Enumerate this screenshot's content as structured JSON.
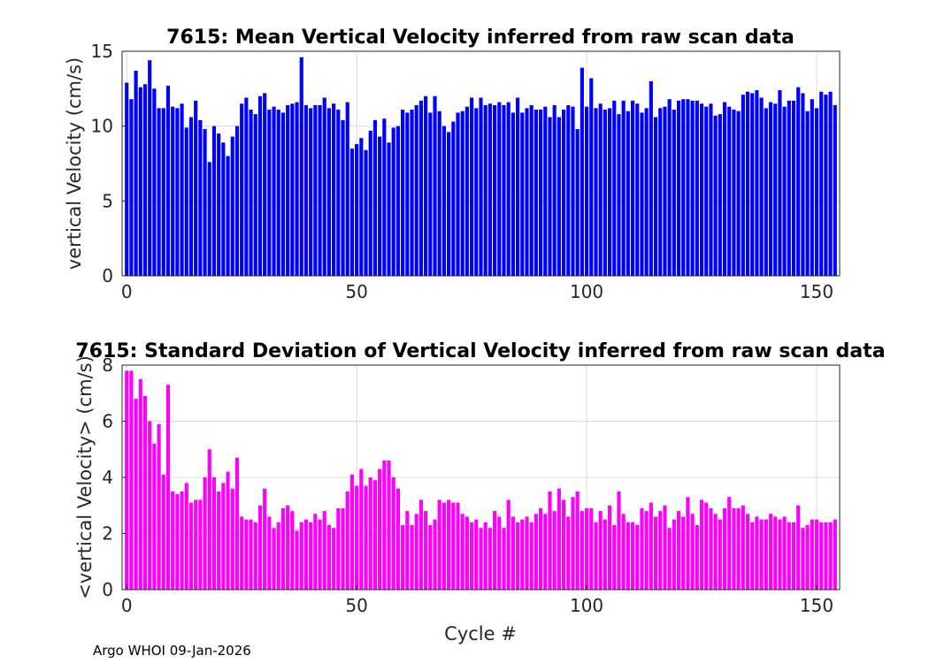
{
  "chart_data": [
    {
      "type": "bar",
      "title": "7615: Mean Vertical Velocity inferred from raw scan data",
      "xlabel": "",
      "ylabel": "vertical Velocity (cm/s)",
      "color": "#0000ff",
      "xlim": [
        -1,
        155
      ],
      "ylim": [
        0,
        15
      ],
      "xticks": [
        0,
        50,
        100,
        150
      ],
      "yticks": [
        0,
        5,
        10,
        15
      ],
      "grid": true,
      "x_start": 0,
      "values": [
        12.9,
        11.8,
        13.7,
        12.6,
        12.8,
        14.4,
        12.5,
        11.2,
        11.2,
        12.7,
        11.3,
        11.2,
        11.5,
        9.9,
        10.6,
        11.7,
        10.4,
        9.8,
        7.6,
        10.0,
        9.5,
        8.9,
        8.0,
        9.3,
        10.0,
        11.5,
        11.9,
        11.1,
        10.8,
        12.0,
        12.2,
        11.1,
        11.3,
        11.1,
        10.9,
        11.4,
        11.5,
        11.6,
        14.6,
        11.4,
        11.2,
        11.4,
        11.4,
        11.9,
        11.2,
        11.5,
        11.1,
        10.4,
        11.6,
        8.5,
        8.8,
        9.2,
        8.4,
        9.7,
        10.4,
        9.3,
        10.5,
        8.9,
        9.9,
        10.0,
        11.1,
        10.9,
        11.1,
        11.4,
        11.7,
        12.0,
        10.9,
        12.0,
        11.0,
        10.0,
        9.6,
        10.3,
        10.9,
        11.0,
        11.3,
        11.9,
        11.2,
        11.9,
        11.4,
        11.5,
        11.4,
        11.6,
        11.4,
        11.6,
        10.9,
        11.9,
        10.9,
        11.2,
        11.4,
        11.1,
        11.1,
        11.3,
        10.6,
        11.4,
        10.6,
        11.1,
        11.4,
        11.3,
        9.8,
        13.9,
        11.3,
        13.2,
        11.2,
        11.5,
        11.1,
        11.2,
        11.7,
        10.8,
        11.7,
        11.0,
        11.7,
        11.5,
        10.9,
        11.2,
        13.0,
        10.6,
        11.2,
        11.3,
        11.8,
        11.1,
        11.7,
        11.8,
        11.8,
        11.7,
        11.7,
        11.5,
        11.3,
        11.5,
        10.7,
        10.8,
        11.6,
        11.3,
        11.1,
        11.0,
        12.1,
        12.3,
        12.2,
        12.4,
        11.9,
        11.2,
        11.6,
        11.5,
        12.4,
        11.3,
        11.7,
        11.7,
        12.6,
        12.2,
        11.0,
        11.8,
        11.2,
        12.3,
        12.1,
        12.3,
        11.4
      ]
    },
    {
      "type": "bar",
      "title": "7615: Standard Deviation of Vertical Velocity inferred from raw scan data",
      "xlabel": "Cycle #",
      "ylabel": "<vertical Velocity> (cm/s)",
      "color": "#ff00ff",
      "xlim": [
        -1,
        155
      ],
      "ylim": [
        0,
        8
      ],
      "xticks": [
        0,
        50,
        100,
        150
      ],
      "yticks": [
        0,
        2,
        4,
        6,
        8
      ],
      "grid": true,
      "x_start": 0,
      "values": [
        7.8,
        7.8,
        6.8,
        7.5,
        6.9,
        6.0,
        5.2,
        5.9,
        4.1,
        7.3,
        3.5,
        3.4,
        3.5,
        3.8,
        3.1,
        3.2,
        3.2,
        4.0,
        5.0,
        4.0,
        3.5,
        3.8,
        4.2,
        3.6,
        4.7,
        2.6,
        2.5,
        2.5,
        2.4,
        3.0,
        3.6,
        2.6,
        2.2,
        2.4,
        2.9,
        3.0,
        2.8,
        2.1,
        2.4,
        2.5,
        2.4,
        2.7,
        2.5,
        2.8,
        2.3,
        2.2,
        2.9,
        2.9,
        3.5,
        4.1,
        3.7,
        4.3,
        3.7,
        4.0,
        3.9,
        4.3,
        4.6,
        4.6,
        4.0,
        3.6,
        2.3,
        2.8,
        2.3,
        2.7,
        3.2,
        2.8,
        2.3,
        2.5,
        3.2,
        3.1,
        3.2,
        3.1,
        3.1,
        2.7,
        2.6,
        2.4,
        2.5,
        2.2,
        2.4,
        2.2,
        2.8,
        2.6,
        2.2,
        3.2,
        2.6,
        2.4,
        2.5,
        2.6,
        2.4,
        2.7,
        2.9,
        2.7,
        3.5,
        2.8,
        3.6,
        3.2,
        2.6,
        3.3,
        3.5,
        2.8,
        2.9,
        2.9,
        2.4,
        2.8,
        2.5,
        3.0,
        2.3,
        3.5,
        2.7,
        2.4,
        2.4,
        2.3,
        2.9,
        2.8,
        3.1,
        2.6,
        2.8,
        3.0,
        2.2,
        2.5,
        2.8,
        2.6,
        3.3,
        2.7,
        2.3,
        3.2,
        3.1,
        2.9,
        2.7,
        2.5,
        2.9,
        3.3,
        2.9,
        2.9,
        3.0,
        2.7,
        2.4,
        2.6,
        2.5,
        2.5,
        2.7,
        2.6,
        2.5,
        2.6,
        2.4,
        2.4,
        3.0,
        2.2,
        2.3,
        2.5,
        2.5,
        2.4,
        2.4,
        2.4,
        2.5
      ]
    }
  ],
  "footer": "Argo WHOI 09-Jan-2026"
}
